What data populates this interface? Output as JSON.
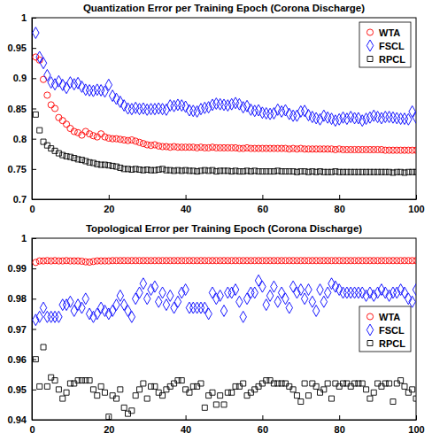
{
  "chart_data": [
    {
      "type": "scatter",
      "title": "Quantization Error per Training Epoch (Corona Discharge)",
      "x": [
        1,
        2,
        3,
        4,
        5,
        6,
        7,
        8,
        9,
        10,
        11,
        12,
        13,
        14,
        15,
        16,
        17,
        18,
        19,
        20,
        21,
        22,
        23,
        24,
        25,
        26,
        27,
        28,
        29,
        30,
        31,
        32,
        33,
        34,
        35,
        36,
        37,
        38,
        39,
        40,
        41,
        42,
        43,
        44,
        45,
        46,
        47,
        48,
        49,
        50,
        51,
        52,
        53,
        54,
        55,
        56,
        57,
        58,
        59,
        60,
        61,
        62,
        63,
        64,
        65,
        66,
        67,
        68,
        69,
        70,
        71,
        72,
        73,
        74,
        75,
        76,
        77,
        78,
        79,
        80,
        81,
        82,
        83,
        84,
        85,
        86,
        87,
        88,
        89,
        90,
        91,
        92,
        93,
        94,
        95,
        96,
        97,
        98,
        99,
        100
      ],
      "xlim": [
        0,
        100
      ],
      "xticks": [
        0,
        20,
        40,
        60,
        80,
        100
      ],
      "ylim": [
        0.7,
        1
      ],
      "yticks": [
        0.7,
        0.75,
        0.8,
        0.85,
        0.9,
        0.95,
        1
      ],
      "grid": false,
      "legend": "upper right",
      "series": [
        {
          "name": "WTA",
          "color": "#ff0000",
          "marker": "circle",
          "values": [
            0.935,
            0.93,
            0.898,
            0.872,
            0.856,
            0.85,
            0.835,
            0.83,
            0.824,
            0.817,
            0.812,
            0.81,
            0.806,
            0.812,
            0.808,
            0.805,
            0.803,
            0.808,
            0.803,
            0.801,
            0.8,
            0.8,
            0.799,
            0.798,
            0.797,
            0.798,
            0.796,
            0.794,
            0.792,
            0.79,
            0.789,
            0.79,
            0.788,
            0.787,
            0.787,
            0.786,
            0.787,
            0.786,
            0.786,
            0.786,
            0.786,
            0.786,
            0.785,
            0.786,
            0.785,
            0.785,
            0.786,
            0.785,
            0.785,
            0.785,
            0.785,
            0.785,
            0.785,
            0.784,
            0.784,
            0.785,
            0.784,
            0.784,
            0.784,
            0.784,
            0.784,
            0.784,
            0.784,
            0.784,
            0.784,
            0.784,
            0.783,
            0.784,
            0.783,
            0.784,
            0.783,
            0.783,
            0.783,
            0.783,
            0.783,
            0.783,
            0.783,
            0.783,
            0.782,
            0.783,
            0.782,
            0.782,
            0.782,
            0.782,
            0.782,
            0.782,
            0.782,
            0.782,
            0.782,
            0.782,
            0.782,
            0.781,
            0.781,
            0.781,
            0.781,
            0.781,
            0.781,
            0.781,
            0.781,
            0.781
          ]
        },
        {
          "name": "FSCL",
          "color": "#0000ff",
          "marker": "diamond",
          "values": [
            0.975,
            0.935,
            0.925,
            0.905,
            0.893,
            0.89,
            0.895,
            0.889,
            0.884,
            0.893,
            0.89,
            0.892,
            0.886,
            0.881,
            0.88,
            0.879,
            0.881,
            0.88,
            0.878,
            0.889,
            0.871,
            0.866,
            0.861,
            0.855,
            0.85,
            0.849,
            0.851,
            0.849,
            0.85,
            0.848,
            0.849,
            0.849,
            0.85,
            0.849,
            0.848,
            0.855,
            0.854,
            0.856,
            0.855,
            0.853,
            0.847,
            0.846,
            0.845,
            0.849,
            0.851,
            0.852,
            0.856,
            0.858,
            0.857,
            0.856,
            0.855,
            0.857,
            0.859,
            0.857,
            0.852,
            0.854,
            0.848,
            0.846,
            0.847,
            0.843,
            0.842,
            0.841,
            0.842,
            0.848,
            0.845,
            0.847,
            0.841,
            0.838,
            0.838,
            0.845,
            0.846,
            0.839,
            0.836,
            0.834,
            0.832,
            0.838,
            0.835,
            0.833,
            0.83,
            0.832,
            0.835,
            0.833,
            0.836,
            0.834,
            0.834,
            0.83,
            0.833,
            0.835,
            0.838,
            0.836,
            0.834,
            0.836,
            0.836,
            0.835,
            0.834,
            0.833,
            0.833,
            0.832,
            0.845,
            0.835
          ]
        },
        {
          "name": "RPCL",
          "color": "#000000",
          "marker": "square",
          "values": [
            0.84,
            0.814,
            0.795,
            0.789,
            0.784,
            0.78,
            0.776,
            0.773,
            0.771,
            0.77,
            0.768,
            0.766,
            0.765,
            0.763,
            0.761,
            0.76,
            0.758,
            0.757,
            0.757,
            0.756,
            0.755,
            0.754,
            0.752,
            0.75,
            0.75,
            0.749,
            0.75,
            0.749,
            0.748,
            0.749,
            0.748,
            0.748,
            0.749,
            0.75,
            0.748,
            0.748,
            0.747,
            0.748,
            0.747,
            0.748,
            0.747,
            0.747,
            0.746,
            0.747,
            0.748,
            0.747,
            0.748,
            0.746,
            0.747,
            0.747,
            0.747,
            0.746,
            0.747,
            0.746,
            0.746,
            0.747,
            0.746,
            0.747,
            0.746,
            0.746,
            0.746,
            0.746,
            0.746,
            0.747,
            0.746,
            0.746,
            0.746,
            0.746,
            0.745,
            0.746,
            0.746,
            0.745,
            0.746,
            0.745,
            0.746,
            0.745,
            0.745,
            0.745,
            0.746,
            0.745,
            0.745,
            0.745,
            0.745,
            0.745,
            0.745,
            0.745,
            0.745,
            0.745,
            0.745,
            0.745,
            0.745,
            0.745,
            0.745,
            0.744,
            0.745,
            0.745,
            0.744,
            0.745,
            0.745,
            0.745
          ]
        }
      ]
    },
    {
      "type": "scatter",
      "title": "Topological Error per Training Epoch (Corona Discharge)",
      "x": [
        1,
        2,
        3,
        4,
        5,
        6,
        7,
        8,
        9,
        10,
        11,
        12,
        13,
        14,
        15,
        16,
        17,
        18,
        19,
        20,
        21,
        22,
        23,
        24,
        25,
        26,
        27,
        28,
        29,
        30,
        31,
        32,
        33,
        34,
        35,
        36,
        37,
        38,
        39,
        40,
        41,
        42,
        43,
        44,
        45,
        46,
        47,
        48,
        49,
        50,
        51,
        52,
        53,
        54,
        55,
        56,
        57,
        58,
        59,
        60,
        61,
        62,
        63,
        64,
        65,
        66,
        67,
        68,
        69,
        70,
        71,
        72,
        73,
        74,
        75,
        76,
        77,
        78,
        79,
        80,
        81,
        82,
        83,
        84,
        85,
        86,
        87,
        88,
        89,
        90,
        91,
        92,
        93,
        94,
        95,
        96,
        97,
        98,
        99,
        100
      ],
      "xlim": [
        0,
        100
      ],
      "xticks": [
        0,
        20,
        40,
        60,
        80,
        100
      ],
      "ylim": [
        0.94,
        1
      ],
      "yticks": [
        0.94,
        0.95,
        0.96,
        0.97,
        0.98,
        0.99,
        1
      ],
      "grid": false,
      "legend": "center right",
      "series": [
        {
          "name": "WTA",
          "color": "#ff0000",
          "marker": "circle",
          "values": [
            0.992,
            0.9925,
            0.9925,
            0.9926,
            0.9925,
            0.9926,
            0.9925,
            0.9925,
            0.9926,
            0.9925,
            0.9925,
            0.9925,
            0.9924,
            0.9922,
            0.9921,
            0.9923,
            0.9925,
            0.9925,
            0.9925,
            0.9925,
            0.9926,
            0.9926,
            0.9926,
            0.9926,
            0.9926,
            0.9926,
            0.9926,
            0.9926,
            0.9926,
            0.9926,
            0.9926,
            0.9926,
            0.9926,
            0.9926,
            0.9926,
            0.9926,
            0.9926,
            0.9926,
            0.9926,
            0.9926,
            0.9926,
            0.9926,
            0.9926,
            0.9926,
            0.9926,
            0.9926,
            0.9926,
            0.9926,
            0.9926,
            0.9926,
            0.9926,
            0.9926,
            0.9926,
            0.9926,
            0.9926,
            0.9926,
            0.9926,
            0.9926,
            0.9926,
            0.9926,
            0.9926,
            0.9926,
            0.9926,
            0.9926,
            0.9926,
            0.9926,
            0.9926,
            0.9926,
            0.9926,
            0.9926,
            0.9926,
            0.9926,
            0.9926,
            0.9926,
            0.9926,
            0.9926,
            0.9926,
            0.9926,
            0.9926,
            0.9926,
            0.9926,
            0.9926,
            0.9926,
            0.9926,
            0.9926,
            0.9926,
            0.9926,
            0.9926,
            0.9926,
            0.9926,
            0.9926,
            0.9926,
            0.9926,
            0.9926,
            0.9926,
            0.9926,
            0.9926,
            0.9926,
            0.9926,
            0.9926
          ]
        },
        {
          "name": "FSCL",
          "color": "#0000ff",
          "marker": "diamond",
          "values": [
            0.973,
            0.974,
            0.977,
            0.974,
            0.974,
            0.974,
            0.974,
            0.978,
            0.978,
            0.979,
            0.976,
            0.978,
            0.977,
            0.98,
            0.975,
            0.974,
            0.975,
            0.977,
            0.976,
            0.975,
            0.976,
            0.978,
            0.981,
            0.978,
            0.976,
            0.974,
            0.98,
            0.982,
            0.985,
            0.98,
            0.983,
            0.984,
            0.979,
            0.982,
            0.978,
            0.981,
            0.977,
            0.979,
            0.982,
            0.983,
            0.977,
            0.977,
            0.977,
            0.977,
            0.977,
            0.975,
            0.982,
            0.98,
            0.981,
            0.976,
            0.982,
            0.982,
            0.983,
            0.979,
            0.974,
            0.98,
            0.982,
            0.982,
            0.986,
            0.984,
            0.978,
            0.981,
            0.984,
            0.979,
            0.982,
            0.98,
            0.977,
            0.984,
            0.982,
            0.983,
            0.98,
            0.983,
            0.979,
            0.976,
            0.983,
            0.979,
            0.982,
            0.985,
            0.984,
            0.983,
            0.982,
            0.982,
            0.982,
            0.982,
            0.982,
            0.982,
            0.981,
            0.982,
            0.981,
            0.982,
            0.983,
            0.982,
            0.981,
            0.982,
            0.982,
            0.983,
            0.982,
            0.98,
            0.979,
            0.983
          ]
        },
        {
          "name": "RPCL",
          "color": "#000000",
          "marker": "square",
          "values": [
            0.96,
            0.951,
            0.964,
            0.951,
            0.954,
            0.953,
            0.95,
            0.947,
            0.949,
            0.952,
            0.952,
            0.953,
            0.953,
            0.953,
            0.953,
            0.95,
            0.948,
            0.951,
            0.949,
            0.941,
            0.948,
            0.947,
            0.95,
            0.944,
            0.942,
            0.943,
            0.948,
            0.95,
            0.952,
            0.947,
            0.951,
            0.951,
            0.949,
            0.948,
            0.95,
            0.951,
            0.952,
            0.953,
            0.953,
            0.95,
            0.949,
            0.951,
            0.951,
            0.952,
            0.944,
            0.948,
            0.949,
            0.945,
            0.948,
            0.945,
            0.949,
            0.949,
            0.951,
            0.951,
            0.952,
            0.948,
            0.949,
            0.95,
            0.951,
            0.952,
            0.953,
            0.953,
            0.952,
            0.952,
            0.952,
            0.952,
            0.951,
            0.95,
            0.948,
            0.946,
            0.952,
            0.948,
            0.952,
            0.951,
            0.949,
            0.95,
            0.952,
            0.947,
            0.952,
            0.951,
            0.952,
            0.952,
            0.951,
            0.952,
            0.952,
            0.952,
            0.95,
            0.947,
            0.949,
            0.952,
            0.951,
            0.952,
            0.952,
            0.946,
            0.952,
            0.953,
            0.951,
            0.949,
            0.95,
            0.947
          ]
        }
      ]
    }
  ]
}
